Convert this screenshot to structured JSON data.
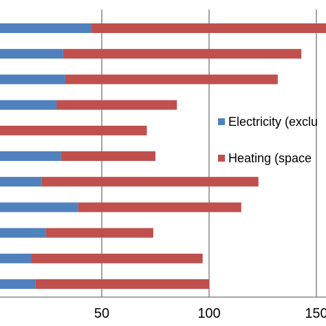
{
  "chart_data": {
    "type": "bar",
    "orientation": "horizontal",
    "stacked": true,
    "x_ticks": [
      "50",
      "100",
      "150"
    ],
    "x_tick_values": [
      50,
      100,
      150
    ],
    "series": [
      {
        "name": "Electricity (exclu",
        "color": "#4F81BD",
        "values": [
          45,
          32,
          33,
          29,
          2,
          31,
          22,
          39,
          24,
          17,
          19
        ]
      },
      {
        "name": "Heating (space",
        "color": "#C0504D",
        "values": [
          111,
          111,
          99,
          56,
          69,
          44,
          101,
          76,
          50,
          80,
          81
        ]
      }
    ],
    "grid": true,
    "legend": "right"
  }
}
